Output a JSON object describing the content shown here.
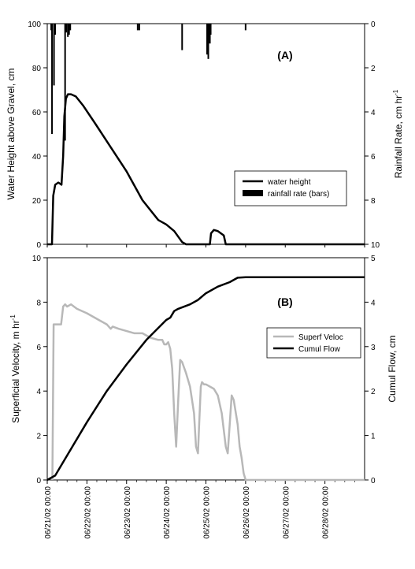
{
  "chart_data": [
    {
      "type": "line",
      "panel_label": "(A)",
      "ylabel": "Water Height above Gravel, cm",
      "ylim": [
        0,
        100
      ],
      "yticks": [
        "0",
        "20",
        "40",
        "60",
        "80",
        "100"
      ],
      "y2label": "Rainfall Rate, cm hr",
      "y2label_sup": "-1",
      "y2lim": [
        0,
        10
      ],
      "y2_inverted": true,
      "y2ticks": [
        "0",
        "2",
        "4",
        "6",
        "8",
        "10"
      ],
      "x_days_range": [
        0,
        8
      ],
      "legend": {
        "placement": "center-right",
        "entries": [
          "water height",
          "rainfall rate (bars)"
        ]
      },
      "series": [
        {
          "name": "water height",
          "color": "#000000",
          "x_days": [
            0,
            0.12,
            0.15,
            0.2,
            0.28,
            0.36,
            0.4,
            0.43,
            0.47,
            0.52,
            0.6,
            0.72,
            0.9,
            1.2,
            1.6,
            2.0,
            2.4,
            2.8,
            3.0,
            3.2,
            3.4,
            3.5,
            3.55,
            3.7,
            4.0,
            4.1,
            4.13,
            4.2,
            4.3,
            4.45,
            4.5,
            4.6,
            8
          ],
          "values": [
            0,
            0,
            22,
            27,
            28,
            27,
            40,
            58,
            66,
            68,
            68,
            67,
            63,
            55,
            44,
            33,
            20,
            11,
            9,
            6,
            1,
            0,
            0,
            0,
            0,
            0,
            5,
            6.5,
            6,
            4,
            0,
            0,
            0
          ]
        }
      ],
      "rainfall_bars": {
        "name": "rainfall rate (bars)",
        "color": "#000000",
        "x_days": [
          0.1,
          0.12,
          0.17,
          0.2,
          0.45,
          0.48,
          0.52,
          0.55,
          0.58,
          2.28,
          2.32,
          3.4,
          4.03,
          4.06,
          4.08,
          4.1,
          4.12,
          5.0
        ],
        "values": [
          0.3,
          5.0,
          2.8,
          0.5,
          5.3,
          0.4,
          0.6,
          0.5,
          0.3,
          0.3,
          0.3,
          1.2,
          1.4,
          1.6,
          0.6,
          0.9,
          0.5,
          0.3
        ]
      }
    },
    {
      "type": "line",
      "panel_label": "(B)",
      "ylabel": "Superficial Velocity, m hr",
      "ylabel_sup": "-1",
      "ylim": [
        0,
        10
      ],
      "yticks": [
        "0",
        "2",
        "4",
        "6",
        "8",
        "10"
      ],
      "y2label": "Cumul Flow, cm",
      "y2lim": [
        0,
        5
      ],
      "y2ticks": [
        "0",
        "1",
        "2",
        "3",
        "4",
        "5"
      ],
      "x_days_range": [
        0,
        8
      ],
      "xticks": [
        "06/21/02 00:00",
        "06/22/02 00:00",
        "06/23/02 00:00",
        "06/24/02 00:00",
        "06/25/02 00:00",
        "06/26/02 00:00",
        "06/27/02 00:00",
        "06/28/02 00:00"
      ],
      "legend": {
        "placement": "center-right",
        "entries": [
          "Superf Veloc",
          "Cumul Flow"
        ]
      },
      "series": [
        {
          "name": "Superf Veloc",
          "color": "#b8b8b8",
          "axis": "left",
          "x_days": [
            0.13,
            0.16,
            0.2,
            0.35,
            0.4,
            0.45,
            0.5,
            0.6,
            0.75,
            1.0,
            1.3,
            1.5,
            1.6,
            1.65,
            1.8,
            2.0,
            2.2,
            2.4,
            2.6,
            2.8,
            2.9,
            2.95,
            3.0,
            3.05,
            3.1,
            3.15,
            3.2,
            3.25,
            3.3,
            3.35,
            3.4,
            3.5,
            3.6,
            3.7,
            3.75,
            3.8,
            3.83,
            3.87,
            3.9,
            3.95,
            4.0,
            4.2,
            4.3,
            4.4,
            4.5,
            4.55,
            4.6,
            4.65,
            4.7,
            4.8,
            4.85,
            4.9,
            4.95,
            5.0,
            5.05,
            5.1,
            5.15,
            5.2,
            5.4,
            8
          ],
          "values": [
            0,
            7.0,
            7.0,
            7.0,
            7.8,
            7.9,
            7.8,
            7.9,
            7.7,
            7.5,
            7.2,
            7.0,
            6.8,
            6.9,
            6.8,
            6.7,
            6.6,
            6.6,
            6.4,
            6.3,
            6.3,
            6.1,
            6.1,
            6.2,
            5.9,
            5.0,
            3.0,
            1.5,
            3.5,
            5.4,
            5.3,
            4.8,
            4.2,
            3.0,
            1.5,
            1.2,
            2.5,
            4.2,
            4.4,
            4.3,
            4.3,
            4.1,
            3.8,
            3.0,
            1.5,
            1.2,
            2.5,
            3.8,
            3.6,
            2.5,
            1.5,
            1.0,
            0.3,
            0,
            0,
            0,
            0,
            0,
            0,
            0
          ]
        },
        {
          "name": "Cumul Flow",
          "color": "#000000",
          "axis": "right",
          "x_days": [
            0,
            0.2,
            0.5,
            1.0,
            1.5,
            2.0,
            2.5,
            3.0,
            3.1,
            3.2,
            3.3,
            3.6,
            3.8,
            4.0,
            4.3,
            4.6,
            4.8,
            5.0,
            5.3,
            8
          ],
          "values": [
            0,
            0.1,
            0.55,
            1.3,
            2.0,
            2.6,
            3.15,
            3.6,
            3.65,
            3.8,
            3.85,
            3.95,
            4.05,
            4.2,
            4.35,
            4.45,
            4.55,
            4.56,
            4.56,
            4.56
          ]
        }
      ]
    }
  ]
}
